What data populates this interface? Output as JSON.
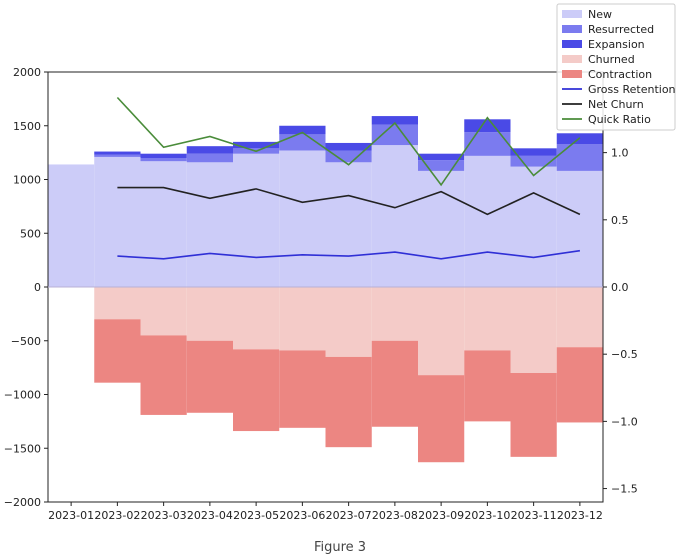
{
  "caption": "Figure 3",
  "chart_data": {
    "type": "bar",
    "categories": [
      "2023-01",
      "2023-02",
      "2023-03",
      "2023-04",
      "2023-05",
      "2023-06",
      "2023-07",
      "2023-08",
      "2023-09",
      "2023-10",
      "2023-11",
      "2023-12"
    ],
    "ylim": [
      -2000,
      2000
    ],
    "y_ticks": [
      2000,
      1500,
      1000,
      500,
      0,
      -500,
      -1000,
      -1500,
      -2000
    ],
    "y2lim": [
      -1.6,
      1.6
    ],
    "y2_ticks": [
      1.0,
      0.5,
      0.0,
      -0.5,
      -1.0,
      -1.5
    ],
    "grid": false,
    "legend_position": "top-right",
    "series": [
      {
        "name": "New",
        "kind": "bar",
        "color": "#ccccf8",
        "values": [
          1140,
          1210,
          1170,
          1160,
          1240,
          1270,
          1160,
          1320,
          1080,
          1220,
          1120,
          1080
        ]
      },
      {
        "name": "Resurrected",
        "kind": "bar",
        "color": "#7b7bef",
        "values": [
          0,
          20,
          30,
          80,
          50,
          150,
          110,
          190,
          100,
          220,
          100,
          250
        ]
      },
      {
        "name": "Expansion",
        "kind": "bar",
        "color": "#4a4ae6",
        "values": [
          0,
          30,
          40,
          70,
          60,
          80,
          70,
          80,
          60,
          120,
          70,
          100
        ]
      },
      {
        "name": "Churned",
        "kind": "bar",
        "color": "#f4cbc8",
        "values": [
          0,
          -300,
          -450,
          -500,
          -580,
          -590,
          -650,
          -500,
          -820,
          -590,
          -800,
          -560
        ]
      },
      {
        "name": "Contraction",
        "kind": "bar",
        "color": "#ec8682",
        "values": [
          0,
          -590,
          -740,
          -670,
          -760,
          -720,
          -840,
          -800,
          -810,
          -660,
          -780,
          -700
        ]
      },
      {
        "name": "Gross Retention",
        "kind": "line",
        "axis": "right",
        "color": "#2f2fd6",
        "values": [
          null,
          0.23,
          0.21,
          0.25,
          0.22,
          0.24,
          0.23,
          0.26,
          0.21,
          0.26,
          0.22,
          0.27
        ]
      },
      {
        "name": "Net Churn",
        "kind": "line",
        "axis": "right",
        "color": "#222222",
        "values": [
          null,
          0.74,
          0.74,
          0.66,
          0.73,
          0.63,
          0.68,
          0.59,
          0.71,
          0.54,
          0.7,
          0.54
        ]
      },
      {
        "name": "Quick Ratio",
        "kind": "line",
        "axis": "right",
        "color": "#4a8c3a",
        "values": [
          null,
          1.41,
          1.04,
          1.12,
          1.01,
          1.15,
          0.91,
          1.22,
          0.76,
          1.26,
          0.83,
          1.11
        ]
      }
    ]
  }
}
